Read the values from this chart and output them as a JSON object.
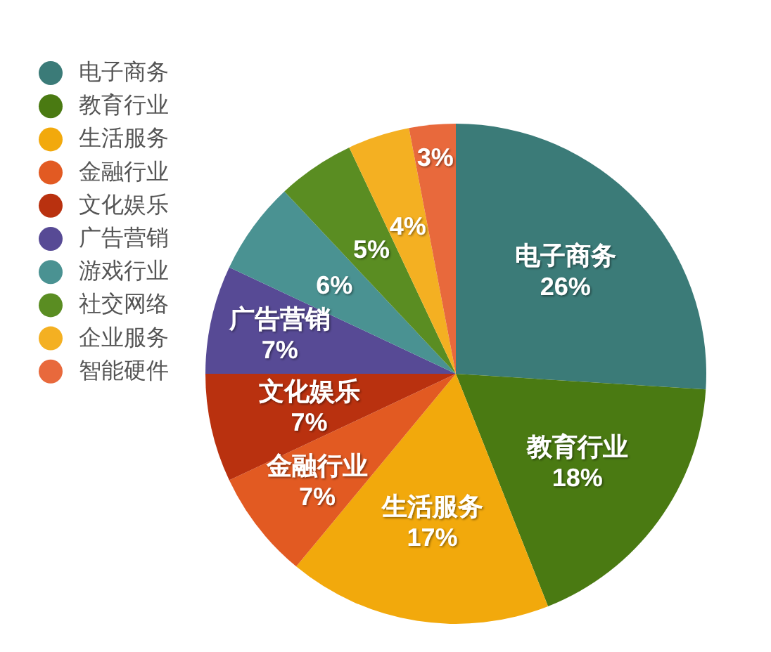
{
  "chart_data": {
    "type": "pie",
    "categories": [
      "电子商务",
      "教育行业",
      "生活服务",
      "金融行业",
      "文化娱乐",
      "广告营销",
      "游戏行业",
      "社交网络",
      "企业服务",
      "智能硬件"
    ],
    "values": [
      26,
      18,
      17,
      7,
      7,
      7,
      6,
      5,
      4,
      3
    ],
    "colors": [
      "#3b7b78",
      "#4a7a12",
      "#f2a90c",
      "#e25a22",
      "#b9310f",
      "#574a95",
      "#4a9292",
      "#5a8d22",
      "#f4b022",
      "#e8693c"
    ],
    "value_labels": [
      "电子商务\n26%",
      "教育行业\n18%",
      "生活服务\n17%",
      "金融行业\n7%",
      "文化娱乐\n7%",
      "广告营销\n7%",
      "6%",
      "5%",
      "4%",
      "3%"
    ],
    "legend": "top left"
  }
}
